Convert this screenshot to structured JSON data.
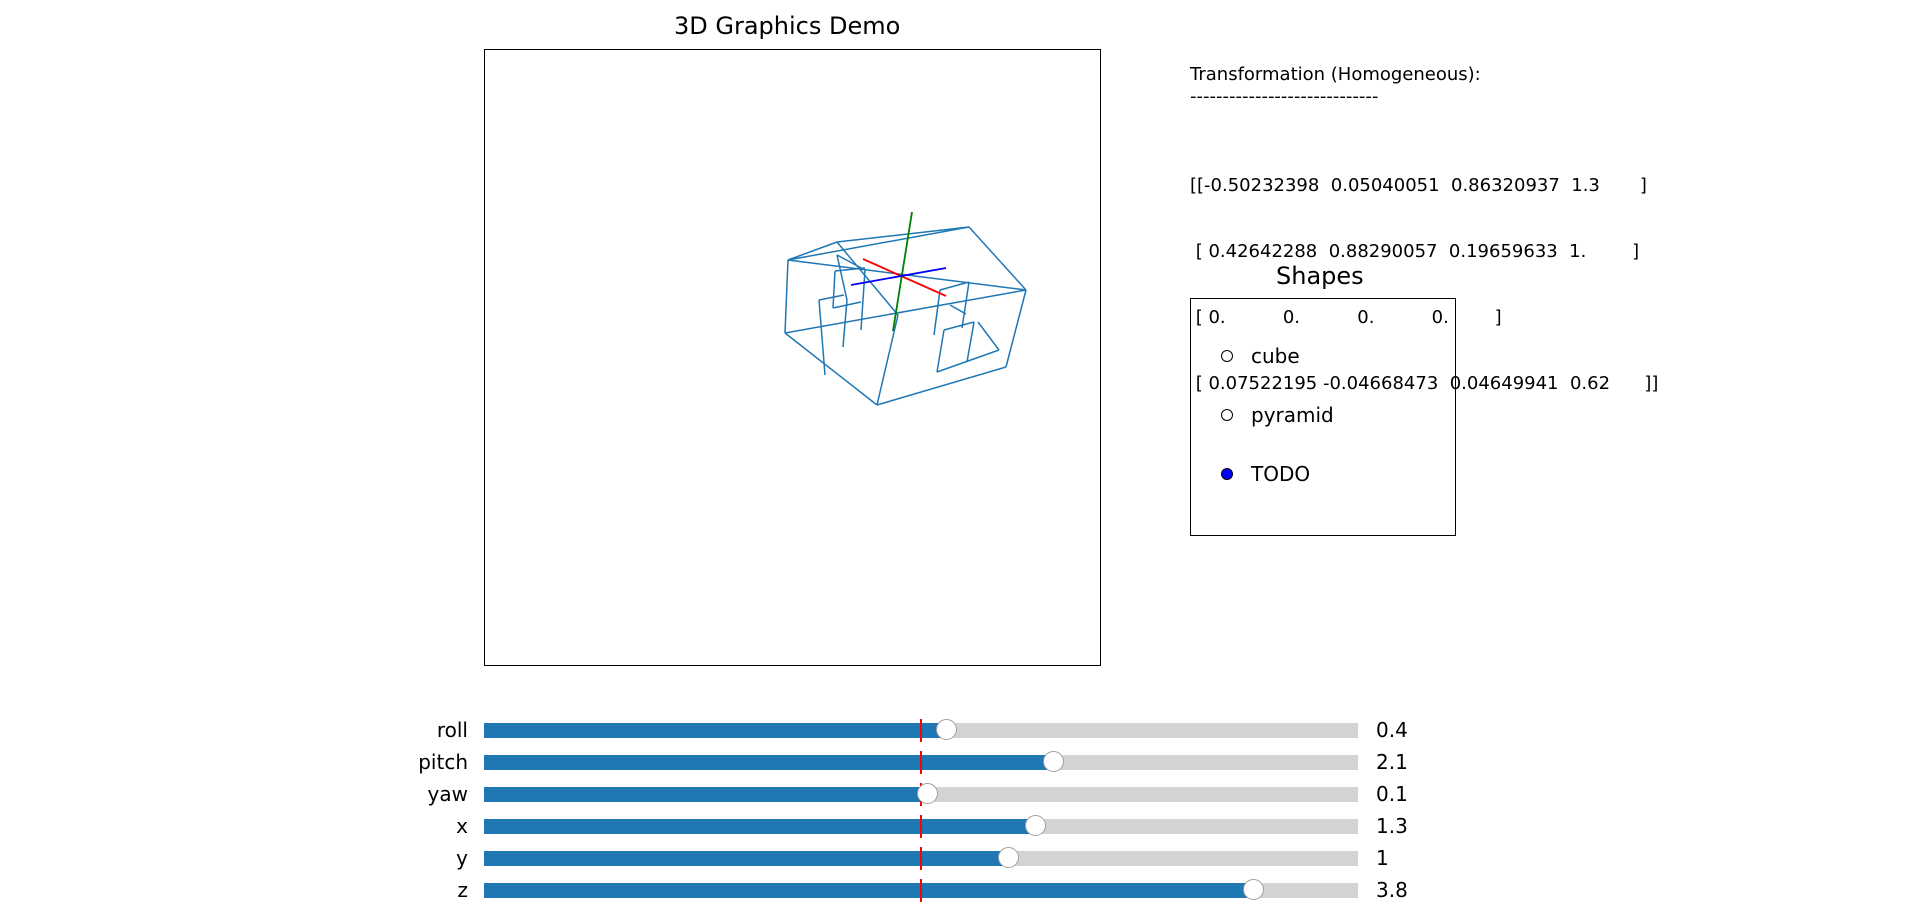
{
  "canvas": {
    "title": "3D Graphics Demo"
  },
  "matrix": {
    "heading": "Transformation (Homogeneous):",
    "rule": "-----------------------------",
    "rows": [
      "[[-0.50232398  0.05040051  0.86320937  1.3       ]",
      " [ 0.42642288  0.88290057  0.19659633  1.        ]",
      " [ 0.          0.          0.          0.        ]",
      " [ 0.07522195 -0.04668473  0.04649941  0.62      ]]"
    ]
  },
  "shapes": {
    "title": "Shapes",
    "options": [
      {
        "label": "cube",
        "selected": false
      },
      {
        "label": "pyramid",
        "selected": false
      },
      {
        "label": "TODO",
        "selected": true
      }
    ],
    "selected_color": "#0000ff"
  },
  "sliders": [
    {
      "label": "roll",
      "value_text": "0.4",
      "fraction": 0.529
    },
    {
      "label": "pitch",
      "value_text": "2.1",
      "fraction": 0.651
    },
    {
      "label": "yaw",
      "value_text": "0.1",
      "fraction": 0.507
    },
    {
      "label": "x",
      "value_text": "1.3",
      "fraction": 0.63
    },
    {
      "label": "y",
      "value_text": "1",
      "fraction": 0.6
    },
    {
      "label": "z",
      "value_text": "3.8",
      "fraction": 0.88
    }
  ],
  "slider_initial_fraction": 0.5,
  "colors": {
    "wireframe": "#1f77b4",
    "axis_x": "#ff0000",
    "axis_y": "#008000",
    "axis_z": "#0000ff",
    "slider_fill": "#1f77b4",
    "slider_track": "#d3d3d3",
    "slider_initial_marker": "#ff0000"
  }
}
